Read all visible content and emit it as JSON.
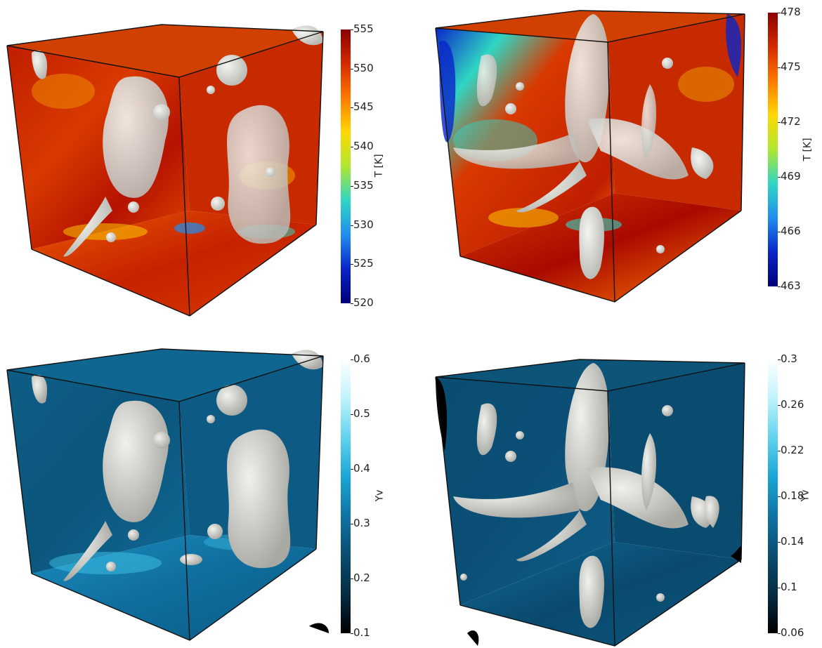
{
  "panels": [
    {
      "id": "temperature-case-1",
      "colorbar": {
        "title": "T [K]",
        "colormap": "rainbow",
        "ticks": [
          "555",
          "550",
          "545",
          "540",
          "535",
          "530",
          "525",
          "520"
        ],
        "min": 520,
        "max": 555
      }
    },
    {
      "id": "temperature-case-2",
      "colorbar": {
        "title": "T [K]",
        "colormap": "rainbow",
        "ticks": [
          "478",
          "475",
          "472",
          "469",
          "466",
          "463"
        ],
        "min": 463,
        "max": 478
      }
    },
    {
      "id": "vapor-case-1",
      "colorbar": {
        "title": "Yv",
        "colormap": "ice",
        "ticks": [
          "0.6",
          "0.5",
          "0.4",
          "0.3",
          "0.2",
          "0.1"
        ],
        "min": 0.1,
        "max": 0.6
      }
    },
    {
      "id": "vapor-case-2",
      "colorbar": {
        "title": "Yv",
        "colormap": "ice",
        "ticks": [
          "0.3",
          "0.26",
          "0.22",
          "0.18",
          "0.14",
          "0.1",
          "0.06"
        ],
        "min": 0.06,
        "max": 0.3
      }
    }
  ],
  "colors": {
    "rainbow": [
      "#8b0000",
      "#d42a00",
      "#ff7a00",
      "#ffd800",
      "#aee830",
      "#2fd6c4",
      "#1f8ef0",
      "#0a25c8",
      "#00007a"
    ],
    "ice": [
      "#ffffff",
      "#bff2fb",
      "#5fd3ee",
      "#1aa6d6",
      "#0f74a4",
      "#0a4d72",
      "#062c44",
      "#000000"
    ],
    "droplet": "#dcdcd6",
    "box_edge": "#111111"
  }
}
